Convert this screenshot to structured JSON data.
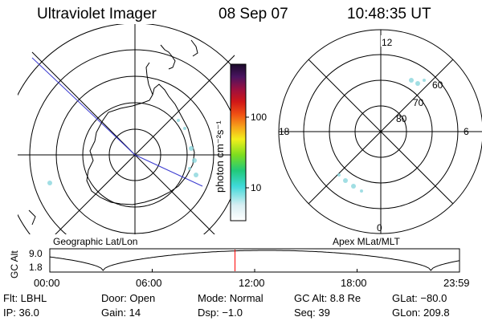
{
  "header": {
    "instrument": "Ultraviolet Imager",
    "date": "08 Sep 07",
    "time": "10:48:35 UT"
  },
  "colorbar": {
    "unit_label": "photon cm⁻²s⁻¹",
    "ticks": [
      "100",
      "10"
    ]
  },
  "left_panel": {
    "label": "Geographic Lat/Lon"
  },
  "right_panel": {
    "label": "Apex MLat/MLT",
    "mlt_labels": {
      "top": "12",
      "left": "18",
      "right": "6",
      "bottom": "0"
    },
    "lat_labels": [
      "60",
      "70",
      "80"
    ]
  },
  "timeline": {
    "ylabel": "GC Alt",
    "y_ticks": [
      "9.0",
      "1.8"
    ],
    "x_ticks": [
      "00:00",
      "06:00",
      "12:00",
      "18:00",
      "23:59"
    ],
    "current_fraction": 0.452,
    "curve_color": "#000000",
    "marker_color": "#ff0000"
  },
  "info": {
    "row1": {
      "flt": "Flt: LBHL",
      "door": "Door: Open",
      "mode": "Mode: Normal",
      "gcalt": "GC Alt: 8.8 Re",
      "glat": "GLat: −80.0"
    },
    "row2": {
      "ip": "IP: 36.0",
      "gain": "Gain: 14",
      "dsp": "Dsp:   −1.0",
      "seq": "Seq: 39",
      "glon": "GLon: 209.8"
    }
  }
}
